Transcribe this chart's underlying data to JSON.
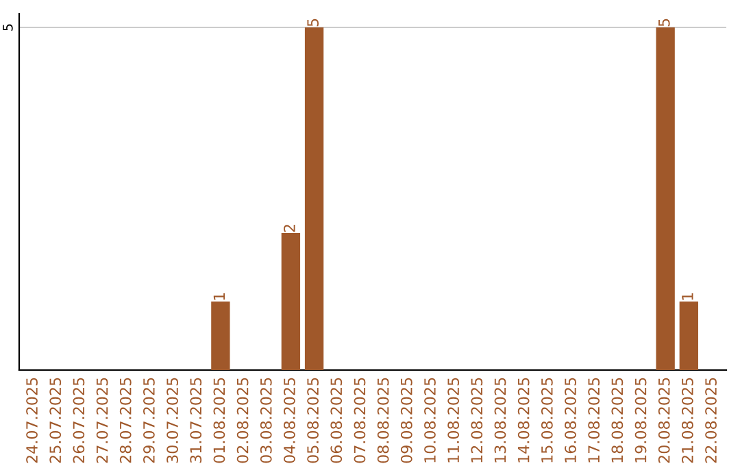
{
  "chart_data": {
    "type": "bar",
    "categories": [
      "24.07.2025",
      "25.07.2025",
      "26.07.2025",
      "27.07.2025",
      "28.07.2025",
      "29.07.2025",
      "30.07.2025",
      "31.07.2025",
      "01.08.2025",
      "02.08.2025",
      "03.08.2025",
      "04.08.2025",
      "05.08.2025",
      "06.08.2025",
      "07.08.2025",
      "08.08.2025",
      "09.08.2025",
      "10.08.2025",
      "11.08.2025",
      "12.08.2025",
      "13.08.2025",
      "14.08.2025",
      "15.08.2025",
      "16.08.2025",
      "17.08.2025",
      "18.08.2025",
      "19.08.2025",
      "20.08.2025",
      "21.08.2025",
      "22.08.2025"
    ],
    "values": [
      0,
      0,
      0,
      0,
      0,
      0,
      0,
      0,
      1,
      0,
      0,
      2,
      5,
      0,
      0,
      0,
      0,
      0,
      0,
      0,
      0,
      0,
      0,
      0,
      0,
      0,
      0,
      5,
      1,
      0
    ],
    "value_labels": [
      null,
      null,
      null,
      null,
      null,
      null,
      null,
      null,
      "1",
      null,
      null,
      "2",
      "5",
      null,
      null,
      null,
      null,
      null,
      null,
      null,
      null,
      null,
      null,
      null,
      null,
      null,
      null,
      "5",
      "1",
      null
    ],
    "color": "#a0582a",
    "ylim": [
      0,
      5.2
    ],
    "yticks": [
      5
    ],
    "grid": "y",
    "legend": false
  }
}
